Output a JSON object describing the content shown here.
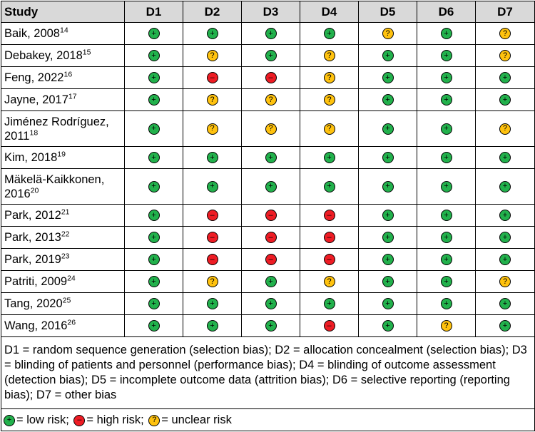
{
  "header": {
    "study_label": "Study",
    "domains": [
      "D1",
      "D2",
      "D3",
      "D4",
      "D5",
      "D6",
      "D7"
    ]
  },
  "rows": [
    {
      "name": "Baik, 2008",
      "ref": "14",
      "ratings": [
        "low",
        "low",
        "low",
        "low",
        "unclear",
        "low",
        "unclear"
      ]
    },
    {
      "name": "Debakey, 2018",
      "ref": "15",
      "ratings": [
        "low",
        "unclear",
        "low",
        "unclear",
        "low",
        "low",
        "unclear"
      ]
    },
    {
      "name": "Feng, 2022",
      "ref": "16",
      "ratings": [
        "low",
        "high",
        "high",
        "unclear",
        "low",
        "low",
        "low"
      ]
    },
    {
      "name": "Jayne, 2017",
      "ref": "17",
      "ratings": [
        "low",
        "unclear",
        "unclear",
        "unclear",
        "low",
        "low",
        "low"
      ]
    },
    {
      "name": "Jiménez Rodríguez, 2011",
      "ref": "18",
      "ratings": [
        "low",
        "unclear",
        "unclear",
        "unclear",
        "low",
        "low",
        "unclear"
      ]
    },
    {
      "name": "Kim, 2018",
      "ref": "19",
      "ratings": [
        "low",
        "low",
        "low",
        "low",
        "low",
        "low",
        "low"
      ]
    },
    {
      "name": "Mäkelä-Kaikkonen, 2016",
      "ref": "20",
      "ratings": [
        "low",
        "low",
        "low",
        "low",
        "low",
        "low",
        "low"
      ]
    },
    {
      "name": "Park, 2012",
      "ref": "21",
      "ratings": [
        "low",
        "high",
        "high",
        "high",
        "low",
        "low",
        "low"
      ]
    },
    {
      "name": "Park, 2013",
      "ref": "22",
      "ratings": [
        "low",
        "high",
        "high",
        "high",
        "low",
        "low",
        "low"
      ]
    },
    {
      "name": "Park, 2019",
      "ref": "23",
      "ratings": [
        "low",
        "high",
        "high",
        "high",
        "low",
        "low",
        "low"
      ]
    },
    {
      "name": "Patriti, 2009",
      "ref": "24",
      "ratings": [
        "low",
        "unclear",
        "low",
        "unclear",
        "low",
        "low",
        "unclear"
      ]
    },
    {
      "name": "Tang, 2020",
      "ref": "25",
      "ratings": [
        "low",
        "low",
        "low",
        "low",
        "low",
        "low",
        "low"
      ]
    },
    {
      "name": "Wang, 2016",
      "ref": "26",
      "ratings": [
        "low",
        "low",
        "low",
        "high",
        "low",
        "unclear",
        "low"
      ]
    }
  ],
  "symbols": {
    "low": {
      "glyph": "+",
      "color": "#22b14c"
    },
    "high": {
      "glyph": "–",
      "color": "#ee1c24"
    },
    "unclear": {
      "glyph": "?",
      "color": "#ffc20e"
    }
  },
  "legend": {
    "definitions": "D1 = random sequence generation (selection bias); D2 = allocation concealment (selection bias); D3 = blinding of patients and personnel (performance bias); D4 = blinding of outcome assessment (detection bias); D5 = incomplete outcome data (attrition bias); D6 = selective reporting (reporting bias); D7 = other bias",
    "low_label": "= low risk;",
    "high_label": "= high risk;",
    "unclear_label": "= unclear risk"
  }
}
